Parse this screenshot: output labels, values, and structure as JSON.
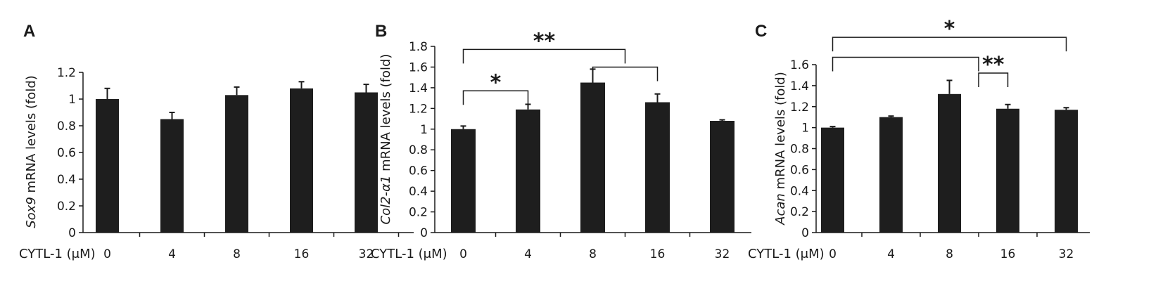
{
  "chart_data": [
    {
      "panel": "A",
      "type": "bar",
      "ylabel_italic": "Sox9",
      "ylabel_rest": " mRNA levels (fold)",
      "xlabel": "CYTL-1 (μM)",
      "categories": [
        "0",
        "4",
        "8",
        "16",
        "32"
      ],
      "values": [
        1.0,
        0.85,
        1.03,
        1.08,
        1.05
      ],
      "errors": [
        0.08,
        0.05,
        0.06,
        0.05,
        0.06
      ],
      "ylim": [
        0,
        1.2
      ],
      "yticks": [
        "0",
        "0.2",
        "0.4",
        "0.6",
        "0.8",
        "1",
        "1.2"
      ],
      "brackets": []
    },
    {
      "panel": "B",
      "type": "bar",
      "ylabel_italic": "Col2-α1",
      "ylabel_rest": " mRNA levels (fold)",
      "xlabel": "CYTL-1 (μM)",
      "categories": [
        "0",
        "4",
        "8",
        "16",
        "32"
      ],
      "values": [
        1.0,
        1.19,
        1.45,
        1.26,
        1.08
      ],
      "errors": [
        0.03,
        0.05,
        0.13,
        0.08,
        0.01
      ],
      "ylim": [
        0,
        1.8
      ],
      "yticks": [
        "0",
        "0.2",
        "0.4",
        "0.6",
        "0.8",
        "1",
        "1.2",
        "1.4",
        "1.6",
        "1.8"
      ],
      "brackets": [
        {
          "from": 0,
          "to": 1,
          "y": 1.37,
          "label": "*"
        },
        {
          "from": 2,
          "to": 3,
          "y": 1.6,
          "label": ""
        },
        {
          "from": 0,
          "to": 2.5,
          "y": 1.77,
          "label": "**"
        }
      ]
    },
    {
      "panel": "C",
      "type": "bar",
      "ylabel_italic": "Acan",
      "ylabel_rest": " mRNA levels (fold)",
      "xlabel": "CYTL-1 (μM)",
      "categories": [
        "0",
        "4",
        "8",
        "16",
        "32"
      ],
      "values": [
        1.0,
        1.1,
        1.32,
        1.18,
        1.17
      ],
      "errors": [
        0.01,
        0.01,
        0.13,
        0.04,
        0.02
      ],
      "ylim": [
        0,
        1.6
      ],
      "yticks": [
        "0",
        "0.2",
        "0.4",
        "0.6",
        "0.8",
        "1",
        "1.2",
        "1.4",
        "1.6"
      ],
      "brackets": [
        {
          "from": 2.5,
          "to": 3,
          "y": 1.52,
          "label": "**"
        },
        {
          "from": 0,
          "to": 2.5,
          "y": 1.67,
          "label": ""
        },
        {
          "from": 0,
          "to": 4,
          "y": 1.86,
          "label": "*"
        }
      ]
    }
  ]
}
